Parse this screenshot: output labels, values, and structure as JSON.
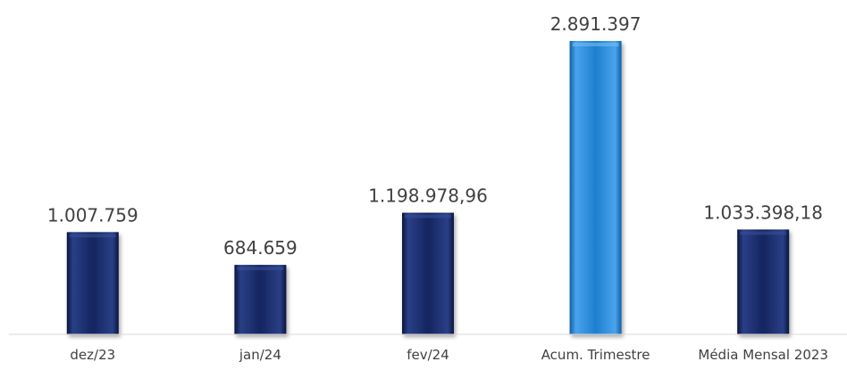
{
  "chart_data": {
    "type": "bar",
    "title": "",
    "xlabel": "",
    "ylabel": "",
    "grid": false,
    "legend": false,
    "categories": [
      "dez/23",
      "jan/24",
      "fev/24",
      "Acum. Trimestre",
      "Média Mensal 2023"
    ],
    "values": [
      1007759,
      684659,
      1198978.96,
      2891397,
      1033398.18
    ],
    "value_labels": [
      "1.007.759",
      "684.659",
      "1.198.978,96",
      "2.891.397",
      "1.033.398,18"
    ],
    "ylim": [
      0,
      2891397
    ],
    "colors": [
      "#14255f",
      "#14255f",
      "#14255f",
      "#1e7fd0",
      "#14255f"
    ]
  }
}
